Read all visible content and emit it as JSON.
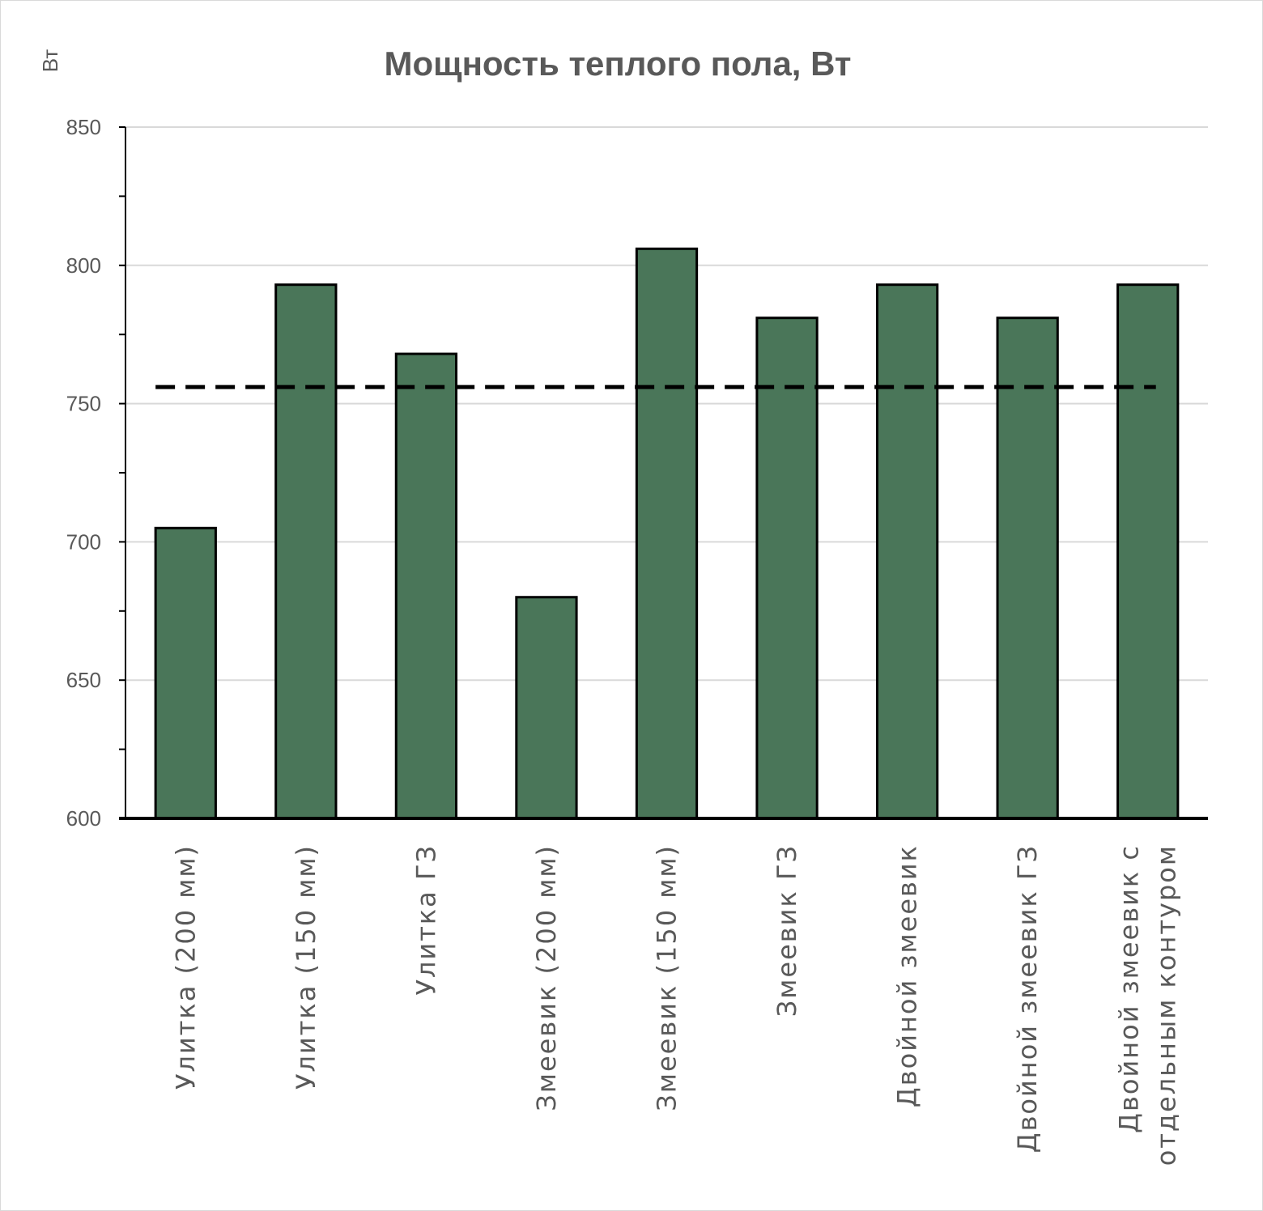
{
  "chart_data": {
    "type": "bar",
    "title": "Мощность теплого пола, Вт",
    "ylabel": "Вт",
    "xlabel": "",
    "ylim": [
      600,
      850
    ],
    "yticks": [
      600,
      650,
      700,
      750,
      800,
      850
    ],
    "categories": [
      "Улитка (200 мм)",
      "Улитка (150 мм)",
      "Улитка ГЗ",
      "Змеевик (200 мм)",
      "Змеевик (150 мм)",
      "Змеевик ГЗ",
      "Двойной змеевик",
      "Двойной змеевик ГЗ",
      "Двойной змеевик с отдельным контуром"
    ],
    "values": [
      705,
      793,
      768,
      680,
      806,
      781,
      793,
      781,
      793
    ],
    "reference_line": {
      "value": 756,
      "style": "dashed",
      "color": "#000000"
    },
    "grid": true,
    "legend": "none",
    "colors": {
      "bar": "#4a7659",
      "bar_outline": "#000000",
      "grid": "#d9d9d9",
      "text": "#595959"
    }
  }
}
